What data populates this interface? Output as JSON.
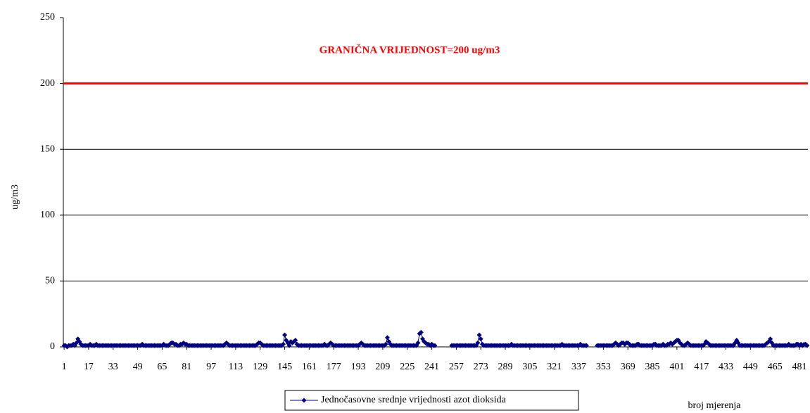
{
  "chart_data": {
    "type": "line",
    "y_label": "ug/m3",
    "x_label": "broj mjerenja",
    "annotation": "GRANIČNA VRIJEDNOST=200 ug/m3",
    "threshold": 200,
    "threshold_color": "#ff0000",
    "ylim": [
      0,
      250
    ],
    "yticks": [
      0,
      50,
      100,
      150,
      200,
      250
    ],
    "grid": true,
    "xticks": [
      1,
      17,
      33,
      49,
      65,
      81,
      97,
      113,
      129,
      145,
      161,
      177,
      193,
      209,
      225,
      241,
      257,
      273,
      289,
      305,
      321,
      337,
      353,
      369,
      385,
      401,
      417,
      433,
      449,
      465,
      481
    ],
    "legend": "bottom",
    "series": [
      {
        "name": "Jednočasovne srednje vrijednosti azot dioksida",
        "color": "#000080",
        "values": [
          1,
          1,
          0,
          1,
          1,
          1,
          2,
          1,
          3,
          6,
          4,
          2,
          1,
          1,
          1,
          1,
          1,
          2,
          1,
          1,
          1,
          2,
          1,
          1,
          1,
          1,
          1,
          1,
          1,
          1,
          1,
          1,
          1,
          1,
          1,
          1,
          1,
          1,
          1,
          1,
          1,
          1,
          1,
          1,
          1,
          1,
          1,
          1,
          1,
          1,
          1,
          2,
          1,
          1,
          1,
          1,
          1,
          1,
          1,
          1,
          1,
          1,
          1,
          1,
          1,
          2,
          1,
          1,
          1,
          2,
          3,
          3,
          2,
          2,
          1,
          1,
          2,
          2,
          3,
          2,
          2,
          1,
          1,
          1,
          1,
          1,
          1,
          1,
          1,
          1,
          1,
          1,
          1,
          1,
          1,
          1,
          1,
          1,
          1,
          1,
          1,
          1,
          1,
          1,
          1,
          2,
          3,
          2,
          1,
          1,
          1,
          1,
          1,
          1,
          1,
          1,
          1,
          1,
          1,
          1,
          1,
          1,
          1,
          1,
          1,
          1,
          2,
          3,
          3,
          2,
          1,
          1,
          1,
          1,
          1,
          1,
          1,
          1,
          1,
          1,
          1,
          1,
          1,
          2,
          9,
          5,
          3,
          1,
          4,
          3,
          4,
          5,
          2,
          1,
          1,
          1,
          1,
          1,
          1,
          1,
          1,
          1,
          1,
          1,
          1,
          1,
          1,
          1,
          1,
          1,
          2,
          1,
          1,
          2,
          3,
          2,
          1,
          1,
          1,
          1,
          1,
          1,
          1,
          1,
          1,
          1,
          1,
          1,
          1,
          1,
          1,
          1,
          1,
          2,
          3,
          2,
          1,
          1,
          1,
          1,
          1,
          1,
          1,
          1,
          1,
          1,
          1,
          1,
          1,
          1,
          2,
          7,
          4,
          2,
          1,
          1,
          1,
          1,
          1,
          1,
          1,
          1,
          1,
          1,
          1,
          1,
          1,
          1,
          1,
          1,
          1,
          3,
          10,
          11,
          6,
          4,
          3,
          2,
          2,
          1,
          2,
          1,
          1,
          null,
          null,
          null,
          null,
          null,
          null,
          null,
          null,
          null,
          null,
          1,
          1,
          1,
          1,
          1,
          1,
          1,
          1,
          1,
          1,
          1,
          1,
          1,
          1,
          1,
          1,
          1,
          3,
          9,
          6,
          2,
          1,
          1,
          1,
          1,
          1,
          1,
          1,
          1,
          1,
          1,
          1,
          1,
          1,
          1,
          1,
          1,
          1,
          1,
          2,
          1,
          1,
          1,
          1,
          1,
          1,
          1,
          1,
          1,
          1,
          1,
          1,
          1,
          1,
          1,
          1,
          1,
          1,
          1,
          1,
          1,
          1,
          1,
          1,
          1,
          1,
          1,
          1,
          1,
          1,
          1,
          1,
          2,
          1,
          1,
          1,
          1,
          1,
          1,
          1,
          1,
          1,
          1,
          1,
          2,
          1,
          1,
          1,
          1,
          null,
          null,
          null,
          null,
          null,
          null,
          1,
          1,
          1,
          1,
          1,
          1,
          1,
          1,
          1,
          1,
          1,
          2,
          3,
          2,
          1,
          2,
          3,
          3,
          2,
          3,
          3,
          2,
          1,
          1,
          1,
          1,
          2,
          2,
          1,
          1,
          1,
          1,
          1,
          1,
          1,
          1,
          1,
          2,
          2,
          1,
          1,
          1,
          1,
          2,
          1,
          1,
          2,
          2,
          3,
          2,
          3,
          4,
          5,
          5,
          3,
          2,
          1,
          1,
          2,
          3,
          2,
          1,
          1,
          1,
          1,
          1,
          1,
          1,
          1,
          1,
          2,
          4,
          3,
          2,
          1,
          1,
          1,
          1,
          1,
          1,
          1,
          1,
          1,
          1,
          1,
          1,
          1,
          1,
          1,
          1,
          3,
          5,
          3,
          1,
          1,
          1,
          1,
          1,
          1,
          1,
          1,
          1,
          1,
          1,
          1,
          1,
          1,
          1,
          1,
          1,
          2,
          3,
          4,
          6,
          3,
          1,
          1,
          1,
          1,
          1,
          1,
          1,
          1,
          1,
          1,
          2,
          1,
          1,
          1,
          1,
          2,
          2,
          1,
          2,
          1,
          2,
          2,
          1
        ]
      }
    ]
  }
}
